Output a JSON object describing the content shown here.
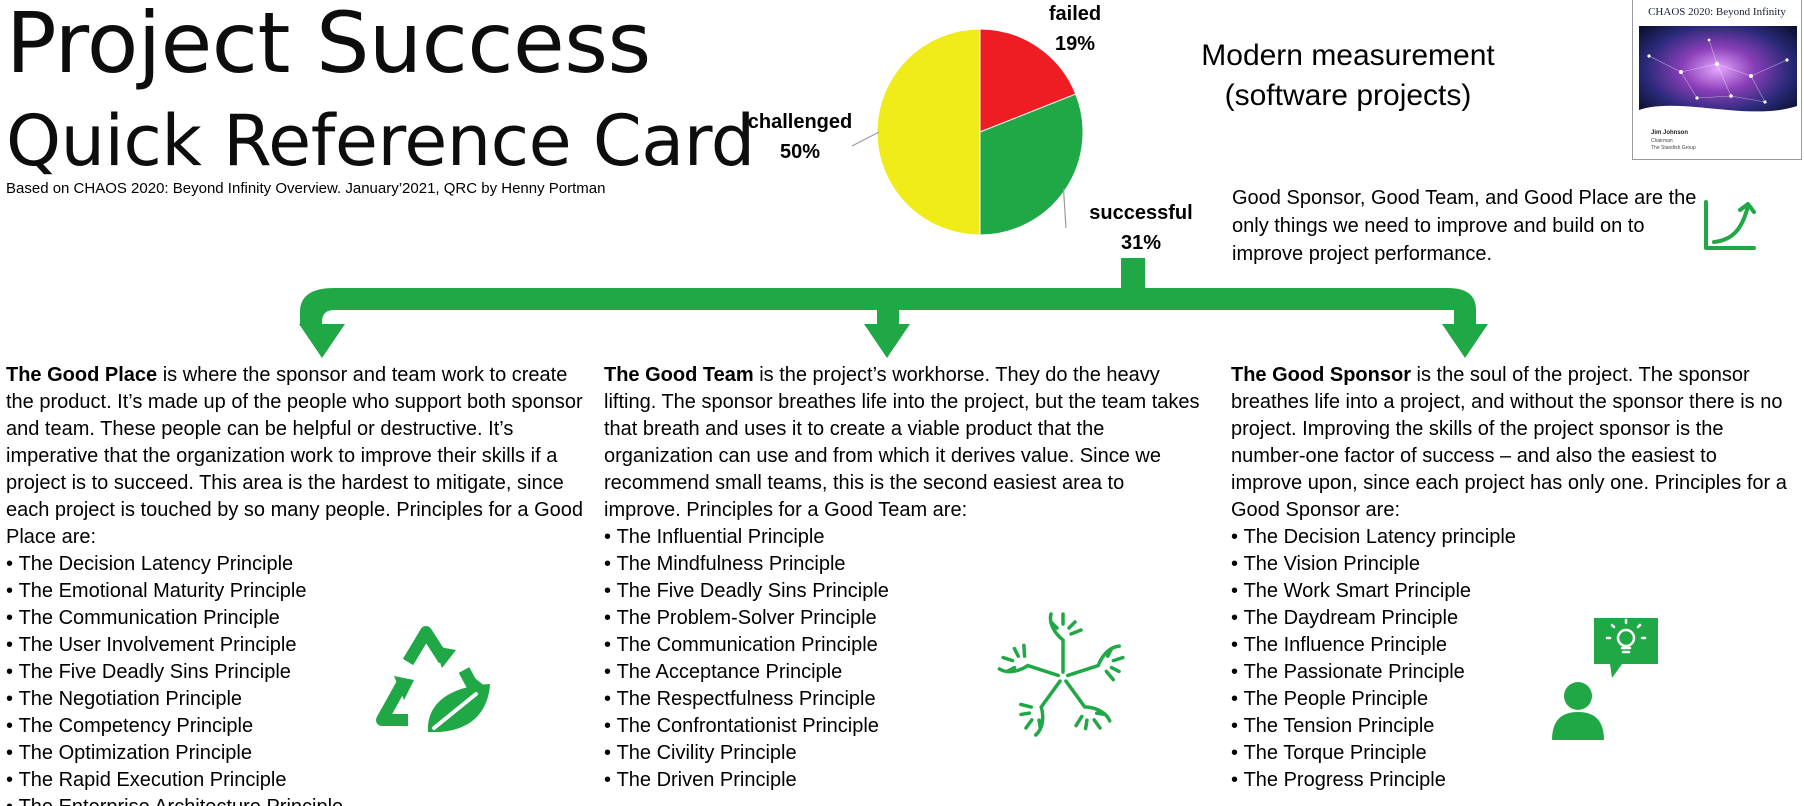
{
  "header": {
    "title_line1": "Project Success",
    "title_line2": "Quick Reference Card",
    "byline": "Based on CHAOS 2020: Beyond Infinity Overview. January’2021, QRC by Henny Portman",
    "measurement_line1": "Modern measurement",
    "measurement_line2": "(software projects)"
  },
  "book_cover": {
    "title": "CHAOS 2020: Beyond Infinity",
    "author": "Jim Johnson",
    "role": "Chairman",
    "org": "The Standish Group"
  },
  "summary": "Good Sponsor, Good Team, and Good Place are the only things we need to improve and build on to improve project performance.",
  "chart_data": {
    "type": "pie",
    "slices": [
      {
        "label": "failed",
        "value": 19,
        "value_label": "19%",
        "color": "#ee1d23"
      },
      {
        "label": "successful",
        "value": 31,
        "value_label": "31%",
        "color": "#21a846"
      },
      {
        "label": "challenged",
        "value": 50,
        "value_label": "50%",
        "color": "#f0ec1a"
      }
    ],
    "start_angle_deg": 0,
    "direction": "clockwise",
    "legend": "none"
  },
  "colors": {
    "accent_green": "#21a846",
    "failed_red": "#ee1d23",
    "challenged_yellow": "#f0ec1a"
  },
  "columns": {
    "place": {
      "heading": "The Good Place",
      "body": " is where the sponsor and team work to create the product. It’s made up of the people who support both sponsor and team. These people can be helpful or destructive. It’s imperative that the organization work to improve their skills if a project is to succeed. This area is the hardest to mitigate, since each project is touched by so many people. Principles for a Good Place are:",
      "principles": [
        "The Decision Latency Principle",
        "The Emotional Maturity Principle",
        "The Communication Principle",
        "The User Involvement Principle",
        "The Five Deadly Sins Principle",
        "The Negotiation Principle",
        "The Competency Principle",
        "The Optimization Principle",
        "The Rapid Execution Principle",
        "The Enterprise Architecture Principle"
      ],
      "icon": "recycle-leaf-icon"
    },
    "team": {
      "heading": "The Good Team",
      "body": " is the project’s workhorse. They do the heavy lifting. The sponsor breathes life into the project, but the team takes that breath and uses it to create a viable product that the organization can use and from which it derives value. Since we recommend small teams, this is the second easiest area to improve. Principles for a Good Team are:",
      "principles": [
        "The Influential Principle",
        "The Mindfulness Principle",
        "The Five Deadly Sins Principle",
        "The Problem-Solver Principle",
        "The Communication Principle",
        "The Acceptance Principle",
        "The Respectfulness Principle",
        "The Confrontationist Principle",
        "The Civility Principle",
        "The Driven Principle"
      ],
      "icon": "team-hands-icon"
    },
    "sponsor": {
      "heading": "The Good Sponsor",
      "body": " is the soul of the project. The sponsor breathes life into a project, and without the sponsor there is no project. Improving the skills of the project sponsor is the number-one factor of success – and also the easiest to improve upon, since each project has only one. Principles for a Good Sponsor are:",
      "principles": [
        "The Decision Latency principle",
        "The Vision Principle",
        "The Work Smart Principle",
        "The Daydream Principle",
        "The Influence Principle",
        "The Passionate Principle",
        "The People Principle",
        "The Tension Principle",
        "The Torque Principle",
        "The Progress Principle"
      ],
      "icon": "person-idea-icon"
    }
  }
}
